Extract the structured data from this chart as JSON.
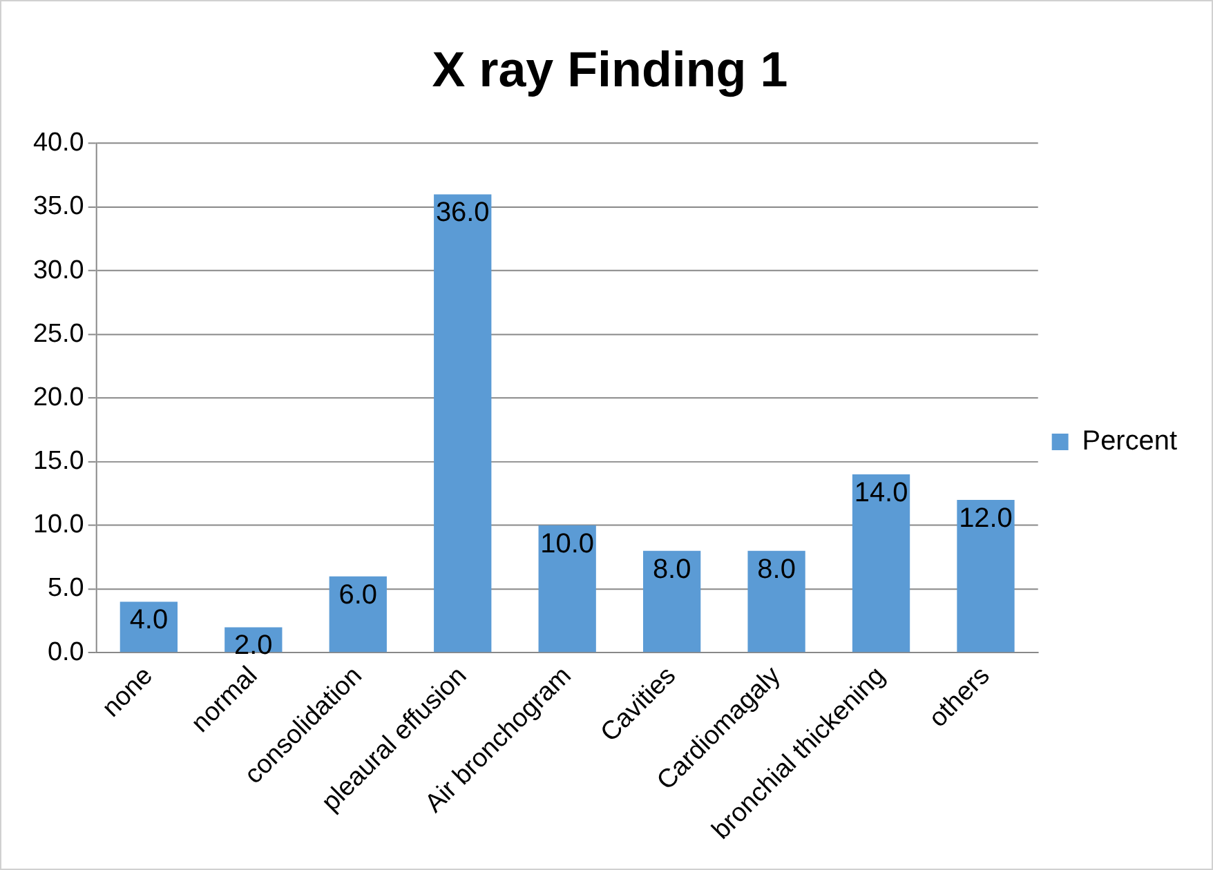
{
  "chart_data": {
    "type": "bar",
    "title": "X ray Finding 1",
    "categories": [
      "none",
      "normal",
      "consolidation",
      "pleaural effusion",
      "Air bronchogram",
      "Cavities",
      "Cardiomagaly",
      "bronchial thickening",
      "others"
    ],
    "series": [
      {
        "name": "Percent",
        "color": "#5b9bd5",
        "values": [
          4,
          2,
          6,
          36,
          10,
          8,
          8,
          14,
          12
        ],
        "value_labels": [
          "4.0",
          "2.0",
          "6.0",
          "36.0",
          "10.0",
          "8.0",
          "8.0",
          "14.0",
          "12.0"
        ]
      }
    ],
    "ylim": [
      0,
      40
    ],
    "yticks": [
      {
        "value": 0,
        "label": "0.0"
      },
      {
        "value": 5,
        "label": "5.0"
      },
      {
        "value": 10,
        "label": "10.0"
      },
      {
        "value": 15,
        "label": "15.0"
      },
      {
        "value": 20,
        "label": "20.0"
      },
      {
        "value": 25,
        "label": "25.0"
      },
      {
        "value": 30,
        "label": "30.0"
      },
      {
        "value": 35,
        "label": "35.0"
      },
      {
        "value": 40,
        "label": "40.0"
      }
    ],
    "grid": "y",
    "legend": "right"
  }
}
